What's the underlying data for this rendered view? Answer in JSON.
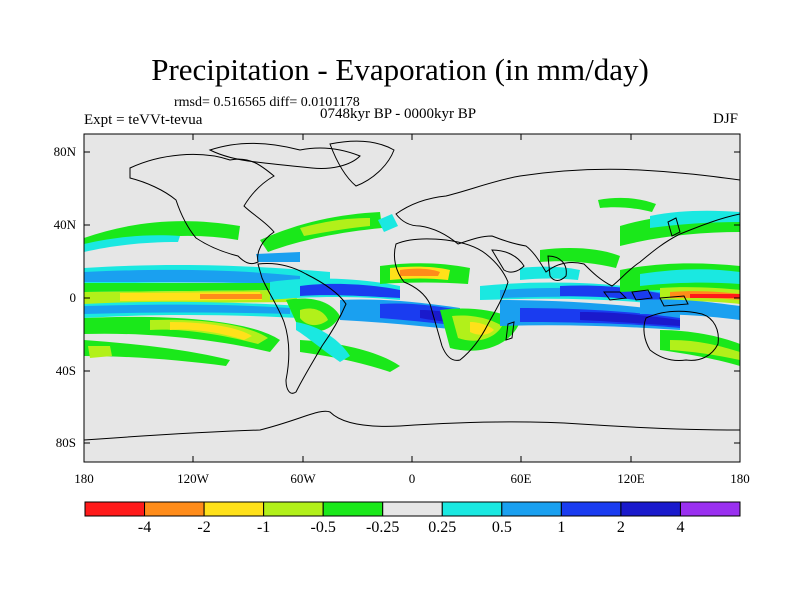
{
  "title": "Precipitation - Evaporation (in mm/day)",
  "stats": "rmsd= 0.516565 diff= 0.0101178",
  "experiment": "Expt = teVVt-tevua",
  "period": "0748kyr BP - 0000kyr BP",
  "season": "DJF",
  "lat_ticks": [
    "80N",
    "40N",
    "0",
    "40S",
    "80S"
  ],
  "lon_ticks": [
    "180",
    "120W",
    "60W",
    "0",
    "60E",
    "120E",
    "180"
  ],
  "colorbar": {
    "colors": [
      "#ff1a1a",
      "#ff8c1a",
      "#ffe11a",
      "#b2f01a",
      "#1ae81a",
      "#e6e6e6",
      "#1ae8e1",
      "#1aa0f0",
      "#1a3cf0",
      "#1a1acc",
      "#9a30f0"
    ],
    "labels": [
      "-4",
      "-2",
      "-1",
      "-0.5",
      "-0.25",
      "0.25",
      "0.5",
      "1",
      "2",
      "4"
    ]
  },
  "colors": {
    "land_background": "#e6e6e6",
    "coastline": "#000000"
  }
}
